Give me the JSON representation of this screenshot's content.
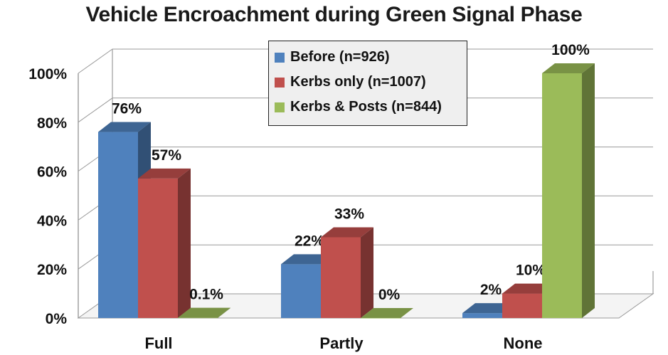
{
  "chart_data": {
    "type": "bar",
    "title": "Vehicle Encroachment during Green Signal Phase",
    "categories": [
      "Full",
      "Partly",
      "None"
    ],
    "series": [
      {
        "name": "Before (n=926)",
        "values": [
          76,
          22,
          2
        ],
        "labels": [
          "76%",
          "22%",
          "2%"
        ],
        "color": "#4f81bd"
      },
      {
        "name": "Kerbs only (n=1007)",
        "values": [
          57,
          33,
          10
        ],
        "labels": [
          "57%",
          "33%",
          "10%"
        ],
        "color": "#c0504d"
      },
      {
        "name": "Kerbs & Posts (n=844)",
        "values": [
          0.1,
          0,
          100
        ],
        "labels": [
          "0.1%",
          "0%",
          "100%"
        ],
        "color": "#9bbb59"
      }
    ],
    "yticks": [
      "0%",
      "20%",
      "40%",
      "60%",
      "80%",
      "100%"
    ],
    "ylim": [
      0,
      100
    ],
    "grid": true,
    "legend_position": "top-center"
  }
}
